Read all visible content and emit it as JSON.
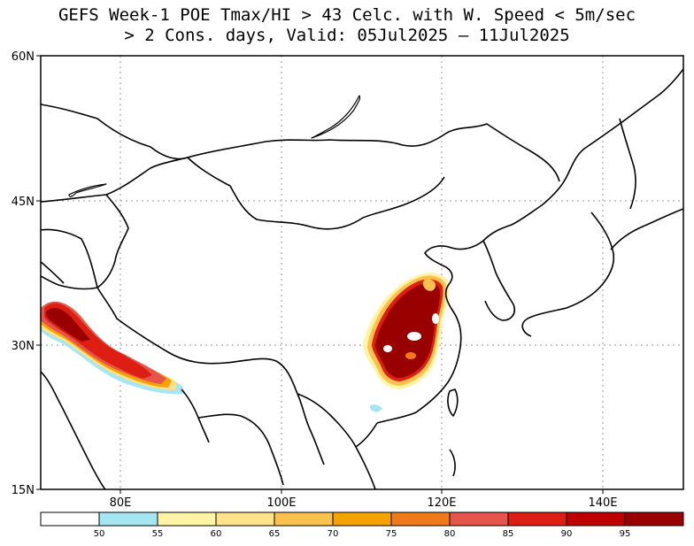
{
  "title": {
    "line1": "GEFS Week-1 POE Tmax/HI > 43 Celc. with W. Speed < 5m/sec",
    "line2": "> 2 Cons. days, Valid: 05Jul2025 – 11Jul2025"
  },
  "axes": {
    "lon_ticks": [
      "80E",
      "100E",
      "120E",
      "140E"
    ],
    "lat_ticks": [
      "60N",
      "45N",
      "30N",
      "15N"
    ],
    "lon_range": [
      70,
      150
    ],
    "lat_range": [
      15,
      60
    ]
  },
  "colorbar": {
    "labels": [
      "50",
      "55",
      "60",
      "65",
      "70",
      "75",
      "80",
      "85",
      "90",
      "95"
    ],
    "colors": [
      "#ffffff",
      "#a6e6f2",
      "#fff3a6",
      "#fde28a",
      "#f9c24f",
      "#f5a300",
      "#f07a1a",
      "#e5554c",
      "#dc1f12",
      "#bf0000",
      "#990000"
    ]
  },
  "map": {
    "projection": "cylindrical equidistant",
    "gridlines": "dotted",
    "land_color": "#ffffff",
    "coast_color": "#000000"
  }
}
